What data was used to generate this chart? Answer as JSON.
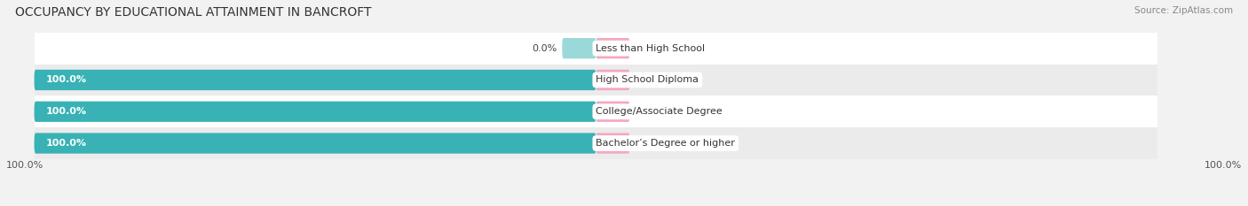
{
  "title": "OCCUPANCY BY EDUCATIONAL ATTAINMENT IN BANCROFT",
  "source": "Source: ZipAtlas.com",
  "categories": [
    "Less than High School",
    "High School Diploma",
    "College/Associate Degree",
    "Bachelor’s Degree or higher"
  ],
  "owner_values": [
    0.0,
    100.0,
    100.0,
    100.0
  ],
  "renter_values": [
    0.0,
    0.0,
    0.0,
    0.0
  ],
  "owner_color": "#38b2b5",
  "renter_color": "#f4a8c0",
  "bg_color": "#f2f2f2",
  "row_colors": [
    "#ffffff",
    "#ebebeb",
    "#ffffff",
    "#ebebeb"
  ],
  "title_fontsize": 10,
  "label_fontsize": 8,
  "legend_fontsize": 8,
  "bar_height": 0.62,
  "renter_stub": 6.0,
  "owner_stub": 6.0
}
